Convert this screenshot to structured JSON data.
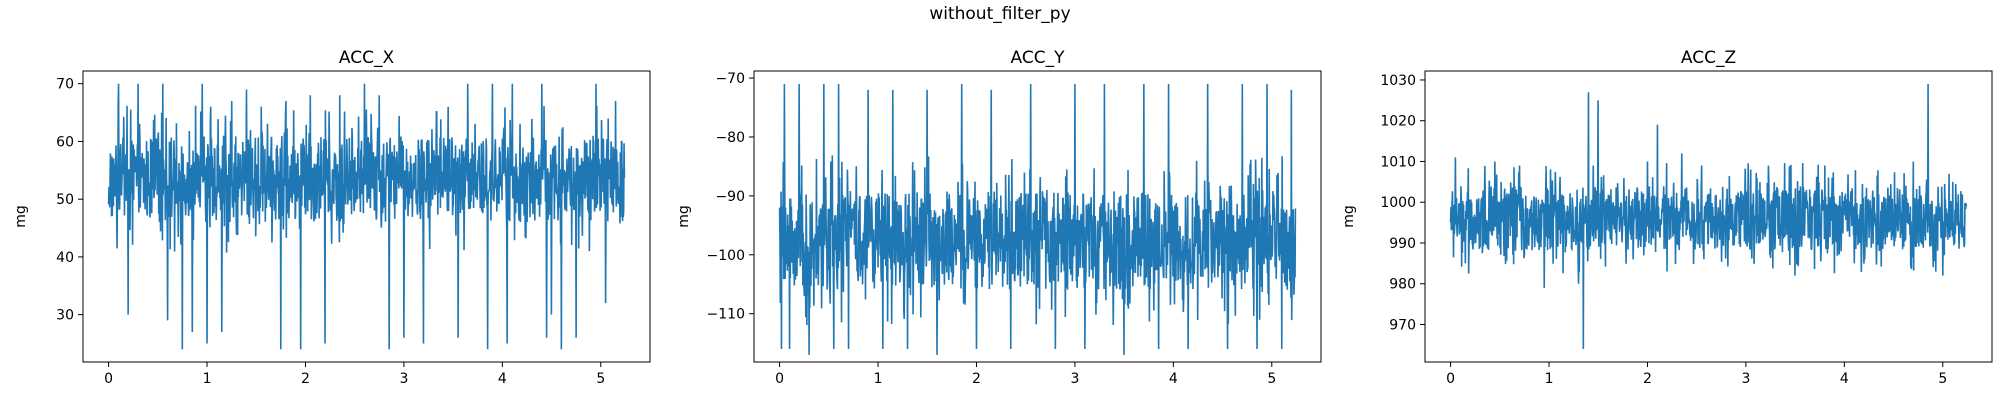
{
  "figure": {
    "suptitle": "without_filter_py"
  },
  "colors": {
    "series": "#1f77b4",
    "axes": "#000000",
    "background": "#ffffff"
  },
  "chart_data": [
    {
      "type": "line",
      "title": "ACC_X",
      "xlabel": "",
      "ylabel": "mg",
      "xlim": [
        -0.26,
        5.5
      ],
      "ylim": [
        21.8,
        72.2
      ],
      "xticks": [
        0,
        1,
        2,
        3,
        4,
        5
      ],
      "yticks": [
        30,
        40,
        50,
        60,
        70
      ],
      "grid": false,
      "x_range": [
        0,
        5.24
      ],
      "y_band": [
        46,
        61
      ],
      "y_center": 53.5,
      "y_extremes": [
        23.5,
        70
      ],
      "series": [
        {
          "spikes": [
            {
              "x": 0.1,
              "y": 70
            },
            {
              "x": 0.2,
              "y": 30
            },
            {
              "x": 0.3,
              "y": 70
            },
            {
              "x": 0.55,
              "y": 70
            },
            {
              "x": 0.6,
              "y": 29
            },
            {
              "x": 0.75,
              "y": 24
            },
            {
              "x": 0.85,
              "y": 27
            },
            {
              "x": 0.95,
              "y": 70
            },
            {
              "x": 1.0,
              "y": 25
            },
            {
              "x": 1.15,
              "y": 27
            },
            {
              "x": 1.25,
              "y": 67
            },
            {
              "x": 1.4,
              "y": 69
            },
            {
              "x": 1.55,
              "y": 66
            },
            {
              "x": 1.75,
              "y": 24
            },
            {
              "x": 1.8,
              "y": 67
            },
            {
              "x": 1.95,
              "y": 24
            },
            {
              "x": 2.05,
              "y": 68
            },
            {
              "x": 2.2,
              "y": 25
            },
            {
              "x": 2.35,
              "y": 68
            },
            {
              "x": 2.6,
              "y": 70
            },
            {
              "x": 2.75,
              "y": 68
            },
            {
              "x": 2.85,
              "y": 24
            },
            {
              "x": 3.0,
              "y": 26
            },
            {
              "x": 3.2,
              "y": 25
            },
            {
              "x": 3.45,
              "y": 66
            },
            {
              "x": 3.55,
              "y": 26
            },
            {
              "x": 3.65,
              "y": 70
            },
            {
              "x": 3.85,
              "y": 24
            },
            {
              "x": 3.9,
              "y": 70
            },
            {
              "x": 4.05,
              "y": 25
            },
            {
              "x": 4.1,
              "y": 70
            },
            {
              "x": 4.4,
              "y": 70
            },
            {
              "x": 4.45,
              "y": 26
            },
            {
              "x": 4.5,
              "y": 30
            },
            {
              "x": 4.6,
              "y": 24
            },
            {
              "x": 4.75,
              "y": 26
            },
            {
              "x": 4.95,
              "y": 70
            },
            {
              "x": 5.05,
              "y": 32
            },
            {
              "x": 5.15,
              "y": 67
            }
          ]
        }
      ]
    },
    {
      "type": "line",
      "title": "ACC_Y",
      "xlabel": "",
      "ylabel": "mg",
      "xlim": [
        -0.26,
        5.5
      ],
      "ylim": [
        -118.2,
        -68.8
      ],
      "xticks": [
        0,
        1,
        2,
        3,
        4,
        5
      ],
      "yticks": [
        -110,
        -100,
        -90,
        -80,
        -70
      ],
      "grid": false,
      "x_range": [
        0,
        5.24
      ],
      "y_band": [
        -106,
        -89
      ],
      "y_center": -97,
      "y_extremes": [
        -117,
        -71
      ],
      "series": [
        {
          "spikes": [
            {
              "x": 0.02,
              "y": -116
            },
            {
              "x": 0.05,
              "y": -71
            },
            {
              "x": 0.1,
              "y": -116
            },
            {
              "x": 0.2,
              "y": -71
            },
            {
              "x": 0.3,
              "y": -117
            },
            {
              "x": 0.45,
              "y": -71
            },
            {
              "x": 0.55,
              "y": -116
            },
            {
              "x": 0.6,
              "y": -71
            },
            {
              "x": 0.7,
              "y": -116
            },
            {
              "x": 0.9,
              "y": -72
            },
            {
              "x": 1.05,
              "y": -116
            },
            {
              "x": 1.15,
              "y": -72
            },
            {
              "x": 1.3,
              "y": -116
            },
            {
              "x": 1.5,
              "y": -72
            },
            {
              "x": 1.6,
              "y": -117
            },
            {
              "x": 1.85,
              "y": -71
            },
            {
              "x": 2.0,
              "y": -116
            },
            {
              "x": 2.15,
              "y": -72
            },
            {
              "x": 2.35,
              "y": -116
            },
            {
              "x": 2.55,
              "y": -71
            },
            {
              "x": 2.8,
              "y": -116
            },
            {
              "x": 3.0,
              "y": -71
            },
            {
              "x": 3.1,
              "y": -116
            },
            {
              "x": 3.3,
              "y": -71
            },
            {
              "x": 3.5,
              "y": -117
            },
            {
              "x": 3.7,
              "y": -71
            },
            {
              "x": 3.85,
              "y": -116
            },
            {
              "x": 3.95,
              "y": -71
            },
            {
              "x": 4.15,
              "y": -116
            },
            {
              "x": 4.35,
              "y": -71
            },
            {
              "x": 4.55,
              "y": -116
            },
            {
              "x": 4.7,
              "y": -71
            },
            {
              "x": 4.85,
              "y": -116
            },
            {
              "x": 4.95,
              "y": -71
            },
            {
              "x": 5.1,
              "y": -116
            },
            {
              "x": 5.2,
              "y": -72
            }
          ]
        }
      ]
    },
    {
      "type": "line",
      "title": "ACC_Z",
      "xlabel": "",
      "ylabel": "mg",
      "xlim": [
        -0.26,
        5.5
      ],
      "ylim": [
        960.8,
        1032.2
      ],
      "xticks": [
        0,
        1,
        2,
        3,
        4,
        5
      ],
      "yticks": [
        970,
        980,
        990,
        1000,
        1010,
        1020,
        1030
      ],
      "grid": false,
      "x_range": [
        0,
        5.24
      ],
      "y_band": [
        988,
        1004
      ],
      "y_center": 996,
      "y_extremes": [
        964,
        1029
      ],
      "series": [
        {
          "spikes": [
            {
              "x": 0.05,
              "y": 1011
            },
            {
              "x": 0.15,
              "y": 985
            },
            {
              "x": 0.45,
              "y": 1010
            },
            {
              "x": 0.7,
              "y": 1009
            },
            {
              "x": 0.95,
              "y": 979
            },
            {
              "x": 1.3,
              "y": 980
            },
            {
              "x": 1.35,
              "y": 964
            },
            {
              "x": 1.4,
              "y": 1027
            },
            {
              "x": 1.45,
              "y": 1009
            },
            {
              "x": 1.5,
              "y": 1025
            },
            {
              "x": 2.0,
              "y": 1010
            },
            {
              "x": 2.1,
              "y": 1019
            },
            {
              "x": 2.2,
              "y": 983
            },
            {
              "x": 2.35,
              "y": 1012
            },
            {
              "x": 2.55,
              "y": 1009
            },
            {
              "x": 3.05,
              "y": 1008
            },
            {
              "x": 3.5,
              "y": 982
            },
            {
              "x": 3.8,
              "y": 1009
            },
            {
              "x": 4.1,
              "y": 985
            },
            {
              "x": 4.7,
              "y": 1010
            },
            {
              "x": 4.85,
              "y": 1029
            },
            {
              "x": 5.0,
              "y": 982
            },
            {
              "x": 5.1,
              "y": 1005
            }
          ]
        }
      ]
    }
  ]
}
